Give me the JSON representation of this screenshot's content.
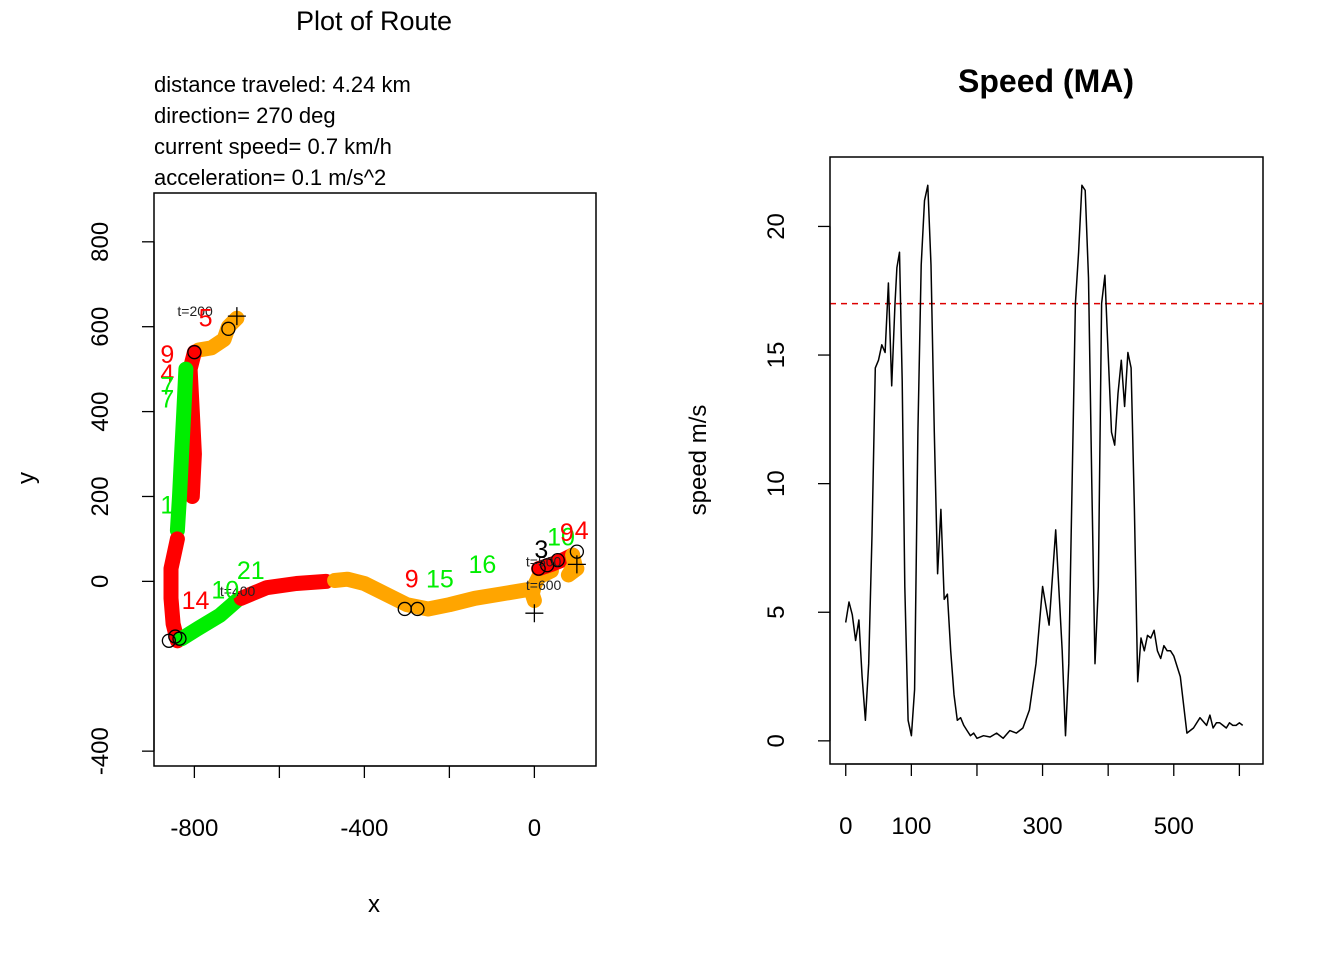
{
  "chart_data": [
    {
      "type": "scatter",
      "title": "Plot of Route",
      "info_lines": [
        "distance traveled: 4.24 km",
        "direction=  270 deg",
        "current speed=  0.7 km/h",
        "acceleration=  0.1 m/s^2"
      ],
      "xlabel": "x",
      "ylabel": "y",
      "xlim": [
        -895,
        145
      ],
      "ylim": [
        -435,
        915
      ],
      "xticks": [
        -800,
        -400,
        0
      ],
      "xtick_labels": [
        "-800",
        "-400",
        "0"
      ],
      "xticks_minor": [
        -600,
        -200
      ],
      "yticks": [
        -400,
        0,
        200,
        400,
        600,
        800
      ],
      "ytick_labels": [
        "-400",
        "0",
        "200",
        "400",
        "600",
        "800"
      ],
      "colors": {
        "slow": "#ffa500",
        "medium": "#00ee00",
        "fast": "#ff0000",
        "marker": "#000000"
      },
      "segments": [
        {
          "color": "#ffa500",
          "points": [
            [
              -700,
              620
            ],
            [
              -720,
              600
            ],
            [
              -730,
              570
            ],
            [
              -760,
              550
            ],
            [
              -790,
              545
            ]
          ]
        },
        {
          "color": "#ff0000",
          "points": [
            [
              -800,
              540
            ],
            [
              -810,
              500
            ],
            [
              -805,
              400
            ],
            [
              -800,
              300
            ],
            [
              -805,
              200
            ]
          ]
        },
        {
          "color": "#00ee00",
          "points": [
            [
              -820,
              500
            ],
            [
              -825,
              400
            ],
            [
              -830,
              300
            ],
            [
              -835,
              200
            ],
            [
              -840,
              120
            ]
          ]
        },
        {
          "color": "#ff0000",
          "points": [
            [
              -840,
              100
            ],
            [
              -855,
              30
            ],
            [
              -855,
              -40
            ],
            [
              -850,
              -100
            ],
            [
              -840,
              -140
            ]
          ]
        },
        {
          "color": "#00ee00",
          "points": [
            [
              -830,
              -135
            ],
            [
              -790,
              -110
            ],
            [
              -740,
              -80
            ],
            [
              -700,
              -45
            ]
          ]
        },
        {
          "color": "#ff0000",
          "points": [
            [
              -690,
              -40
            ],
            [
              -630,
              -15
            ],
            [
              -560,
              -5
            ],
            [
              -490,
              0
            ]
          ]
        },
        {
          "color": "#ffa500",
          "points": [
            [
              -470,
              2
            ],
            [
              -440,
              5
            ],
            [
              -400,
              -5
            ],
            [
              -350,
              -30
            ],
            [
              -300,
              -55
            ],
            [
              -250,
              -65
            ],
            [
              -200,
              -55
            ],
            [
              -140,
              -40
            ],
            [
              -80,
              -30
            ],
            [
              -20,
              -20
            ]
          ]
        },
        {
          "color": "#ffa500",
          "points": [
            [
              0,
              -45
            ],
            [
              -5,
              -30
            ],
            [
              0,
              -10
            ],
            [
              10,
              10
            ],
            [
              40,
              25
            ]
          ]
        },
        {
          "color": "#ff0000",
          "points": [
            [
              10,
              30
            ],
            [
              40,
              40
            ],
            [
              70,
              52
            ],
            [
              90,
              62
            ]
          ]
        },
        {
          "color": "#ffa500",
          "points": [
            [
              90,
              62
            ],
            [
              95,
              40
            ],
            [
              80,
              15
            ],
            [
              100,
              30
            ]
          ]
        }
      ],
      "circles": [
        [
          -720,
          595
        ],
        [
          -800,
          540
        ],
        [
          -845,
          -130
        ],
        [
          -860,
          -140
        ],
        [
          -835,
          -135
        ],
        [
          -305,
          -65
        ],
        [
          -275,
          -65
        ],
        [
          10,
          30
        ],
        [
          30,
          38
        ],
        [
          55,
          50
        ],
        [
          100,
          70
        ]
      ],
      "crosses": [
        [
          -700,
          625
        ],
        [
          0,
          -75
        ],
        [
          100,
          40
        ]
      ],
      "time_labels": [
        {
          "text": "t=200",
          "x": -840,
          "y": 625
        },
        {
          "text": "t=400",
          "x": -740,
          "y": -35
        },
        {
          "text": "t=500",
          "x": -20,
          "y": 35
        },
        {
          "text": "t=600",
          "x": -20,
          "y": -20
        }
      ],
      "point_labels": [
        {
          "text": "5",
          "x": -790,
          "y": 600,
          "color": "#ff0000"
        },
        {
          "text": "9",
          "x": -880,
          "y": 515,
          "color": "#ff0000"
        },
        {
          "text": "4",
          "x": -880,
          "y": 470,
          "color": "#ff0000"
        },
        {
          "text": "7",
          "x": -880,
          "y": 440,
          "color": "#00ee00"
        },
        {
          "text": "7",
          "x": -880,
          "y": 410,
          "color": "#00ee00"
        },
        {
          "text": "1",
          "x": -880,
          "y": 160,
          "color": "#00ee00"
        },
        {
          "text": "14",
          "x": -830,
          "y": -65,
          "color": "#ff0000"
        },
        {
          "text": "10",
          "x": -760,
          "y": -40,
          "color": "#00ee00"
        },
        {
          "text": "21",
          "x": -700,
          "y": 5,
          "color": "#00ee00"
        },
        {
          "text": "9",
          "x": -305,
          "y": -15,
          "color": "#ff0000"
        },
        {
          "text": "15",
          "x": -255,
          "y": -15,
          "color": "#00ee00"
        },
        {
          "text": "16",
          "x": -155,
          "y": 20,
          "color": "#00ee00"
        },
        {
          "text": "3",
          "x": 0,
          "y": 55,
          "color": "#000000"
        },
        {
          "text": "10",
          "x": 30,
          "y": 85,
          "color": "#00ee00"
        },
        {
          "text": "9",
          "x": 60,
          "y": 95,
          "color": "#ff0000"
        },
        {
          "text": "4",
          "x": 95,
          "y": 100,
          "color": "#ff0000"
        }
      ]
    },
    {
      "type": "line",
      "title": "Speed (MA)",
      "xlabel": "",
      "ylabel": "speed m/s",
      "xlim": [
        -24,
        636
      ],
      "ylim": [
        -0.9,
        22.7
      ],
      "xticks": [
        0,
        100,
        200,
        300,
        400,
        500,
        600
      ],
      "xtick_labels": [
        "0",
        "100",
        "300",
        "500"
      ],
      "xtick_label_positions": [
        0,
        100,
        300,
        500
      ],
      "yticks": [
        0,
        5,
        10,
        15,
        20
      ],
      "ytick_labels": [
        "0",
        "5",
        "10",
        "15",
        "20"
      ],
      "threshold": {
        "value": 17,
        "color": "#dd0000",
        "style": "dashed"
      },
      "series": [
        {
          "x": [
            0,
            5,
            10,
            15,
            20,
            25,
            30,
            35,
            40,
            45,
            50,
            55,
            60,
            65,
            70,
            75,
            78,
            82,
            86,
            90,
            95,
            100,
            105,
            110,
            115,
            120,
            125,
            130,
            135,
            140,
            145,
            150,
            155,
            160,
            165,
            170,
            175,
            180,
            185,
            190,
            195,
            200,
            210,
            220,
            230,
            240,
            250,
            260,
            270,
            280,
            290,
            300,
            310,
            320,
            330,
            335,
            340,
            345,
            350,
            355,
            360,
            365,
            370,
            375,
            380,
            385,
            390,
            395,
            400,
            405,
            410,
            415,
            420,
            425,
            430,
            435,
            440,
            445,
            450,
            455,
            460,
            465,
            470,
            475,
            480,
            485,
            490,
            495,
            500,
            510,
            520,
            530,
            540,
            550,
            555,
            560,
            565,
            570,
            575,
            580,
            585,
            590,
            595,
            600,
            605
          ],
          "y": [
            4.6,
            5.4,
            4.9,
            3.9,
            4.7,
            2.5,
            0.8,
            3.0,
            8.0,
            14.5,
            14.8,
            15.4,
            15.1,
            17.8,
            13.8,
            17.0,
            18.4,
            19.0,
            14.0,
            6.0,
            0.8,
            0.2,
            2.0,
            12.0,
            18.5,
            21.0,
            21.6,
            18.5,
            12.0,
            6.5,
            9.0,
            5.5,
            5.7,
            3.5,
            1.8,
            0.8,
            0.9,
            0.6,
            0.4,
            0.2,
            0.3,
            0.1,
            0.2,
            0.15,
            0.3,
            0.1,
            0.4,
            0.3,
            0.5,
            1.2,
            3.0,
            6.0,
            4.5,
            8.2,
            3.5,
            0.2,
            3.0,
            10.0,
            17.0,
            19.0,
            21.6,
            21.4,
            18.0,
            10.0,
            3.0,
            6.0,
            17.0,
            18.1,
            15.0,
            12.0,
            11.5,
            13.5,
            14.8,
            13.0,
            15.1,
            14.5,
            9.0,
            2.3,
            4.0,
            3.5,
            4.1,
            4.0,
            4.3,
            3.5,
            3.2,
            3.7,
            3.5,
            3.5,
            3.3,
            2.5,
            0.3,
            0.5,
            0.9,
            0.6,
            1.0,
            0.5,
            0.7,
            0.7,
            0.6,
            0.5,
            0.7,
            0.6,
            0.6,
            0.7,
            0.6
          ]
        }
      ]
    }
  ]
}
